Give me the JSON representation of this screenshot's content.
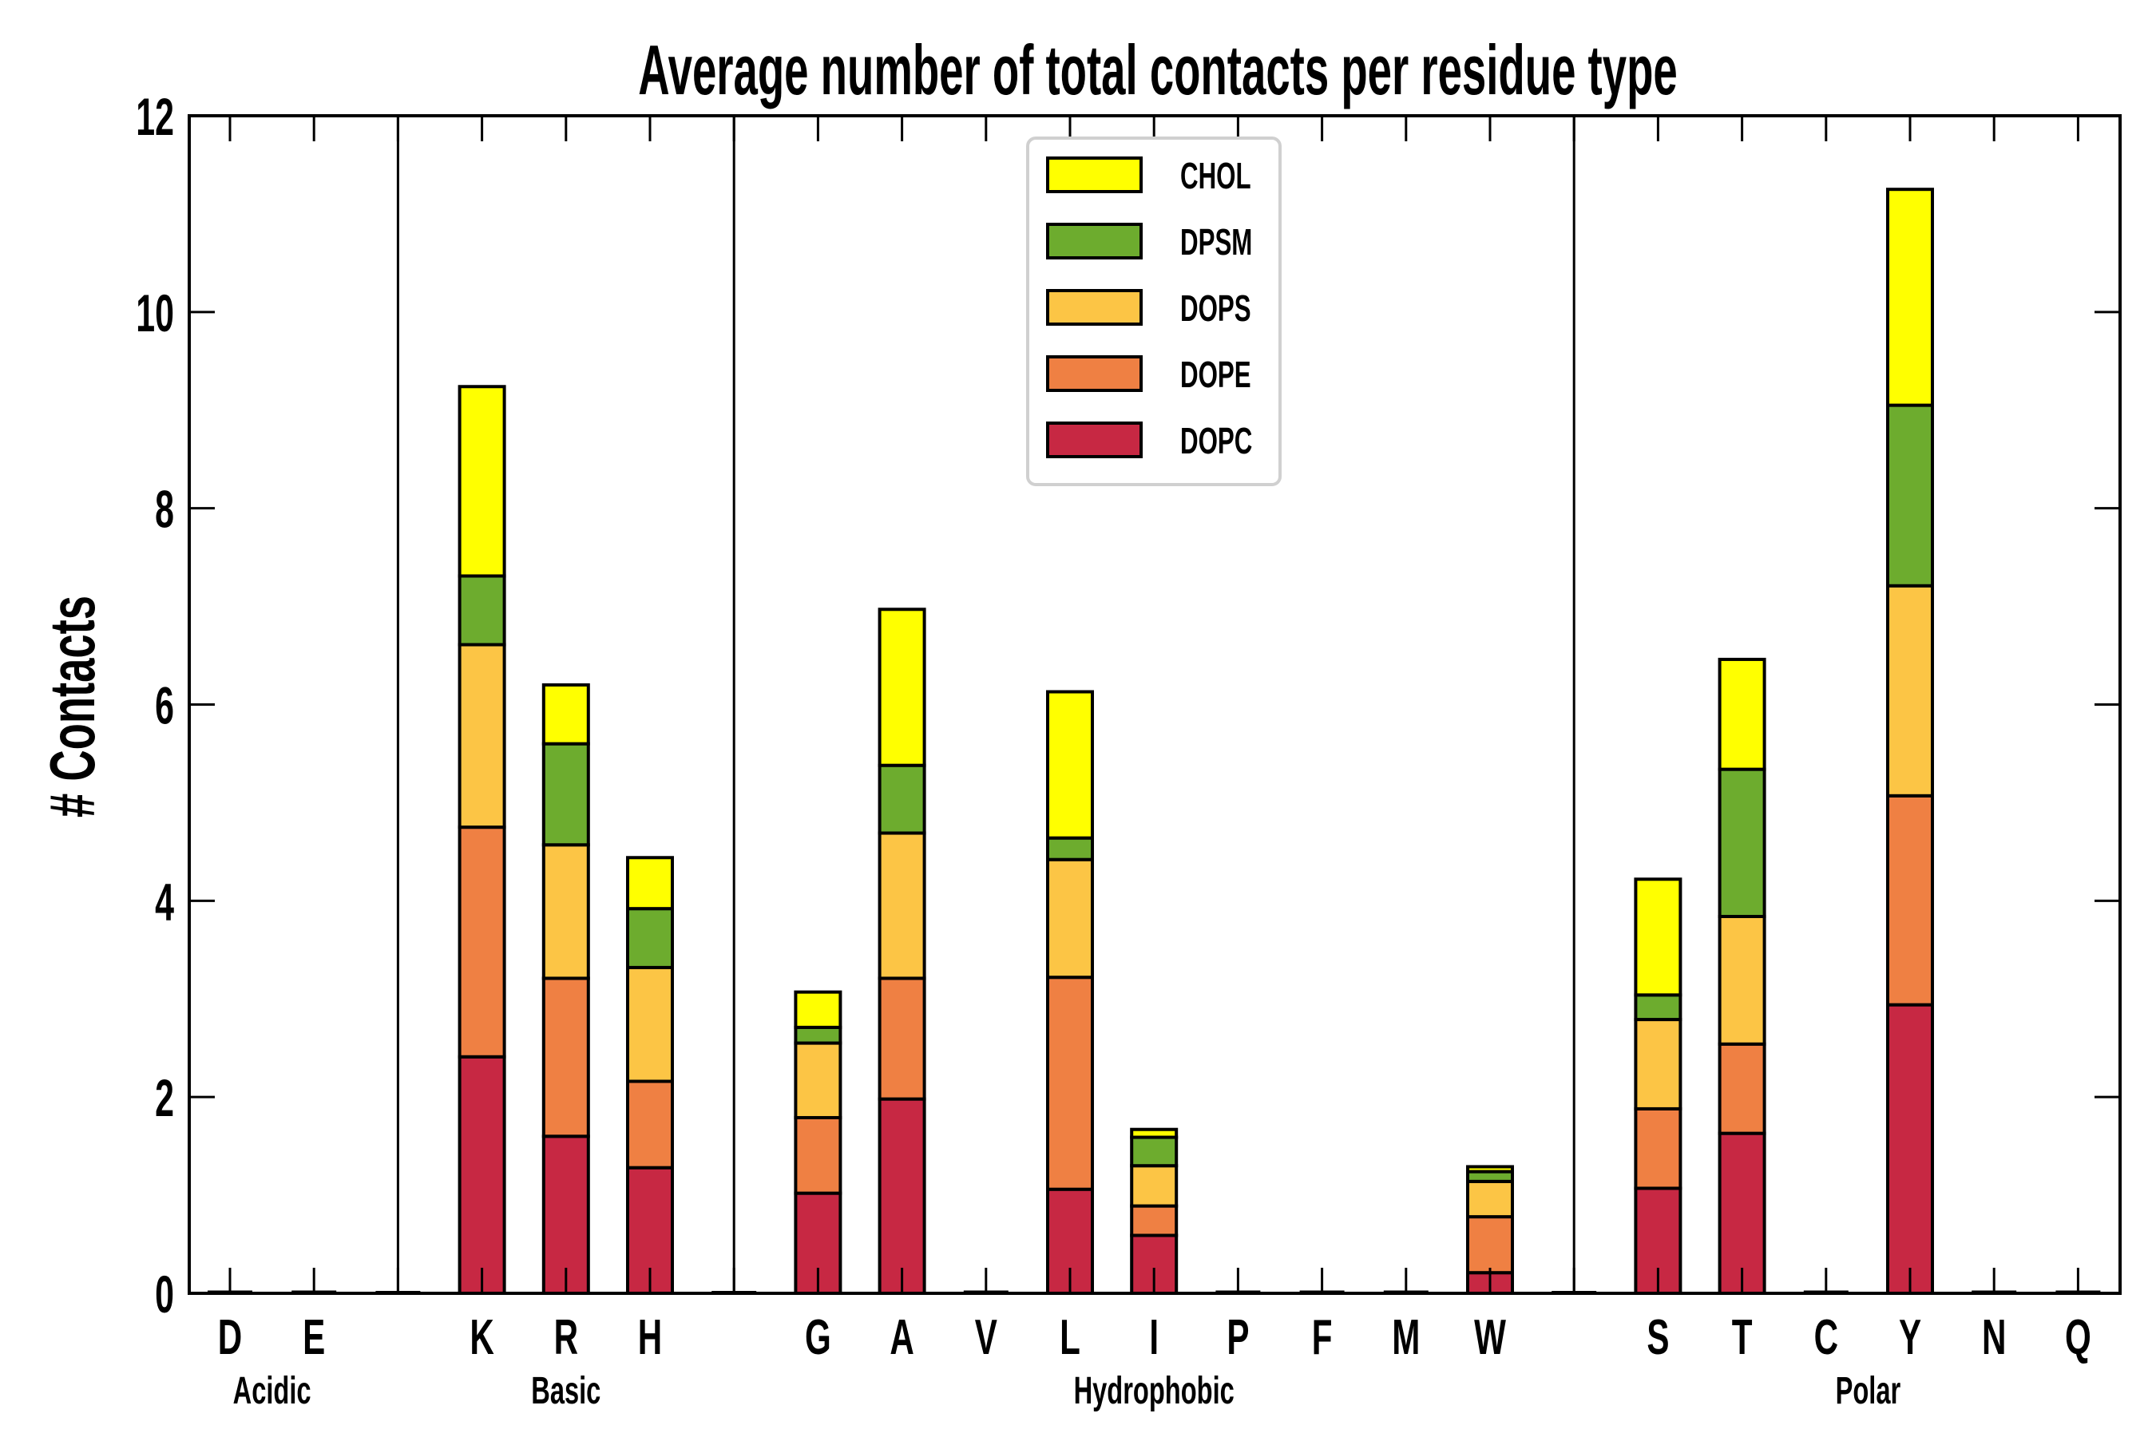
{
  "chart_data": {
    "type": "bar",
    "stacked": true,
    "title": "Average number of total contacts per residue type",
    "xlabel": "",
    "ylabel": "# Contacts",
    "ylim": [
      0,
      12
    ],
    "yticks": [
      "0",
      "2",
      "4",
      "6",
      "8",
      "10",
      "12"
    ],
    "grid": false,
    "legend_position": "top-center",
    "slots": [
      "D",
      "E",
      "",
      "K",
      "R",
      "H",
      "",
      "G",
      "A",
      "V",
      "L",
      "I",
      "P",
      "F",
      "M",
      "W",
      "",
      "S",
      "T",
      "C",
      "Y",
      "N",
      "Q"
    ],
    "categories": [
      "D",
      "E",
      "K",
      "R",
      "H",
      "G",
      "A",
      "V",
      "L",
      "I",
      "P",
      "F",
      "M",
      "W",
      "S",
      "T",
      "C",
      "Y",
      "N",
      "Q"
    ],
    "groups": [
      {
        "name": "Acidic",
        "members": [
          "D",
          "E"
        ]
      },
      {
        "name": "Basic",
        "members": [
          "K",
          "R",
          "H"
        ]
      },
      {
        "name": "Hydrophobic",
        "members": [
          "G",
          "A",
          "V",
          "L",
          "I",
          "P",
          "F",
          "M",
          "W"
        ]
      },
      {
        "name": "Polar",
        "members": [
          "S",
          "T",
          "C",
          "Y",
          "N",
          "Q"
        ]
      }
    ],
    "series": [
      {
        "name": "DOPC",
        "color": "#C72843",
        "values": {
          "D": 0,
          "E": 0,
          "K": 2.41,
          "R": 1.6,
          "H": 1.28,
          "G": 1.02,
          "A": 1.98,
          "V": 0,
          "L": 1.06,
          "I": 0.59,
          "P": 0,
          "F": 0,
          "M": 0,
          "W": 0.21,
          "S": 1.07,
          "T": 1.63,
          "C": 0,
          "Y": 2.94,
          "N": 0,
          "Q": 0
        }
      },
      {
        "name": "DOPE",
        "color": "#EF8043",
        "values": {
          "D": 0,
          "E": 0,
          "K": 2.34,
          "R": 1.61,
          "H": 0.88,
          "G": 0.77,
          "A": 1.23,
          "V": 0,
          "L": 2.16,
          "I": 0.3,
          "P": 0,
          "F": 0,
          "M": 0,
          "W": 0.57,
          "S": 0.81,
          "T": 0.91,
          "C": 0,
          "Y": 2.13,
          "N": 0,
          "Q": 0
        }
      },
      {
        "name": "DOPS",
        "color": "#FCC545",
        "values": {
          "D": 0,
          "E": 0,
          "K": 1.86,
          "R": 1.36,
          "H": 1.16,
          "G": 0.76,
          "A": 1.48,
          "V": 0,
          "L": 1.2,
          "I": 0.41,
          "P": 0,
          "F": 0,
          "M": 0,
          "W": 0.36,
          "S": 0.91,
          "T": 1.3,
          "C": 0,
          "Y": 2.14,
          "N": 0,
          "Q": 0
        }
      },
      {
        "name": "DPSM",
        "color": "#6DAC2E",
        "values": {
          "D": 0,
          "E": 0,
          "K": 0.7,
          "R": 1.03,
          "H": 0.6,
          "G": 0.16,
          "A": 0.69,
          "V": 0,
          "L": 0.22,
          "I": 0.29,
          "P": 0,
          "F": 0,
          "M": 0,
          "W": 0.1,
          "S": 0.25,
          "T": 1.5,
          "C": 0,
          "Y": 1.84,
          "N": 0,
          "Q": 0
        }
      },
      {
        "name": "CHOL",
        "color": "#FFFF00",
        "values": {
          "D": 0,
          "E": 0,
          "K": 1.93,
          "R": 0.6,
          "H": 0.52,
          "G": 0.36,
          "A": 1.59,
          "V": 0,
          "L": 1.49,
          "I": 0.08,
          "P": 0,
          "F": 0,
          "M": 0,
          "W": 0.05,
          "S": 1.18,
          "T": 1.12,
          "C": 0,
          "Y": 2.2,
          "N": 0,
          "Q": 0
        }
      }
    ],
    "legend_order": [
      "CHOL",
      "DPSM",
      "DOPS",
      "DOPE",
      "DOPC"
    ]
  }
}
